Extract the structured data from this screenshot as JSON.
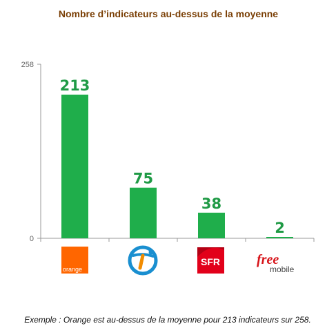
{
  "chart_data": {
    "type": "bar",
    "title": "Nombre d’indicateurs au-dessus de la moyenne",
    "categories": [
      "orange",
      "bouygues",
      "SFR",
      "free mobile"
    ],
    "values": [
      213,
      75,
      38,
      2
    ],
    "ylim": [
      0,
      258
    ],
    "yticks": [
      "258",
      "0"
    ],
    "bar_color": "#1fae4b",
    "label_color": "#1f9a45",
    "grid": false,
    "caption": "Exemple : Orange est au-dessus de la moyenne pour 213 indicateurs sur 258."
  },
  "logos": {
    "orange": {
      "text": "orange",
      "color": "#ff6600"
    },
    "bouygues": {
      "icon": "bouygues-telecom-logo",
      "colors": [
        "#1a8fd0",
        "#f28c00"
      ]
    },
    "sfr": {
      "text": "SFR",
      "color": "#e2001a"
    },
    "free": {
      "text": "free",
      "subtext": "mobile",
      "color": "#d7141a"
    }
  }
}
